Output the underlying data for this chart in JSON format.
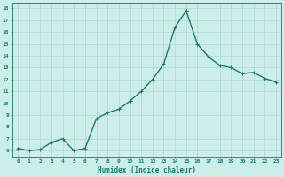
{
  "x": [
    0,
    1,
    2,
    3,
    4,
    5,
    6,
    7,
    8,
    9,
    10,
    11,
    12,
    13,
    14,
    15,
    16,
    17,
    18,
    19,
    20,
    21,
    22,
    23
  ],
  "y": [
    6.2,
    6.0,
    6.1,
    6.7,
    7.0,
    6.0,
    6.2,
    8.7,
    9.2,
    9.5,
    10.2,
    11.0,
    12.0,
    13.3,
    16.4,
    17.8,
    15.0,
    13.9,
    13.2,
    13.0,
    12.5,
    12.6,
    12.1,
    11.8
  ],
  "xlabel": "Humidex (Indice chaleur)",
  "line_color": "#1a7a6e",
  "bg_color": "#cceee8",
  "grid_color": "#aad8d0",
  "tick_color": "#1a7a6e",
  "xlabel_color": "#1a7a6e",
  "ylim": [
    5.5,
    18.5
  ],
  "xlim": [
    -0.5,
    23.5
  ],
  "yticks": [
    6,
    7,
    8,
    9,
    10,
    11,
    12,
    13,
    14,
    15,
    16,
    17,
    18
  ],
  "xticks": [
    0,
    1,
    2,
    3,
    4,
    5,
    6,
    7,
    8,
    9,
    10,
    11,
    12,
    13,
    14,
    15,
    16,
    17,
    18,
    19,
    20,
    21,
    22,
    23
  ],
  "xtick_labels": [
    "0",
    "1",
    "2",
    "3",
    "4",
    "5",
    "6",
    "7",
    "8",
    "9",
    "10",
    "11",
    "12",
    "13",
    "14",
    "15",
    "16",
    "17",
    "18",
    "19",
    "20",
    "21",
    "22",
    "23"
  ],
  "marker": "+",
  "marker_size": 3,
  "linewidth": 1.0
}
